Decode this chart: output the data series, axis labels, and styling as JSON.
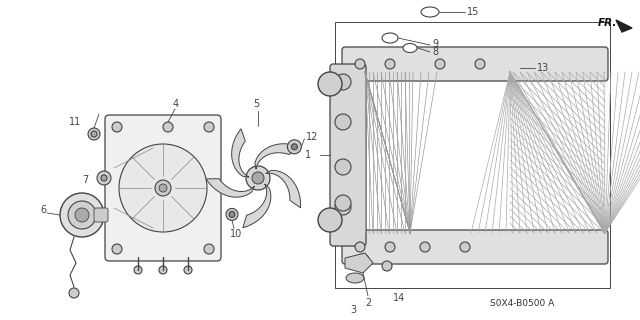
{
  "bg_color": "#ffffff",
  "diagram_code": "S0X4-B0500 A",
  "fr_label": "FR.",
  "line_color": "#444444",
  "light_gray": "#bbbbbb",
  "mid_gray": "#888888"
}
